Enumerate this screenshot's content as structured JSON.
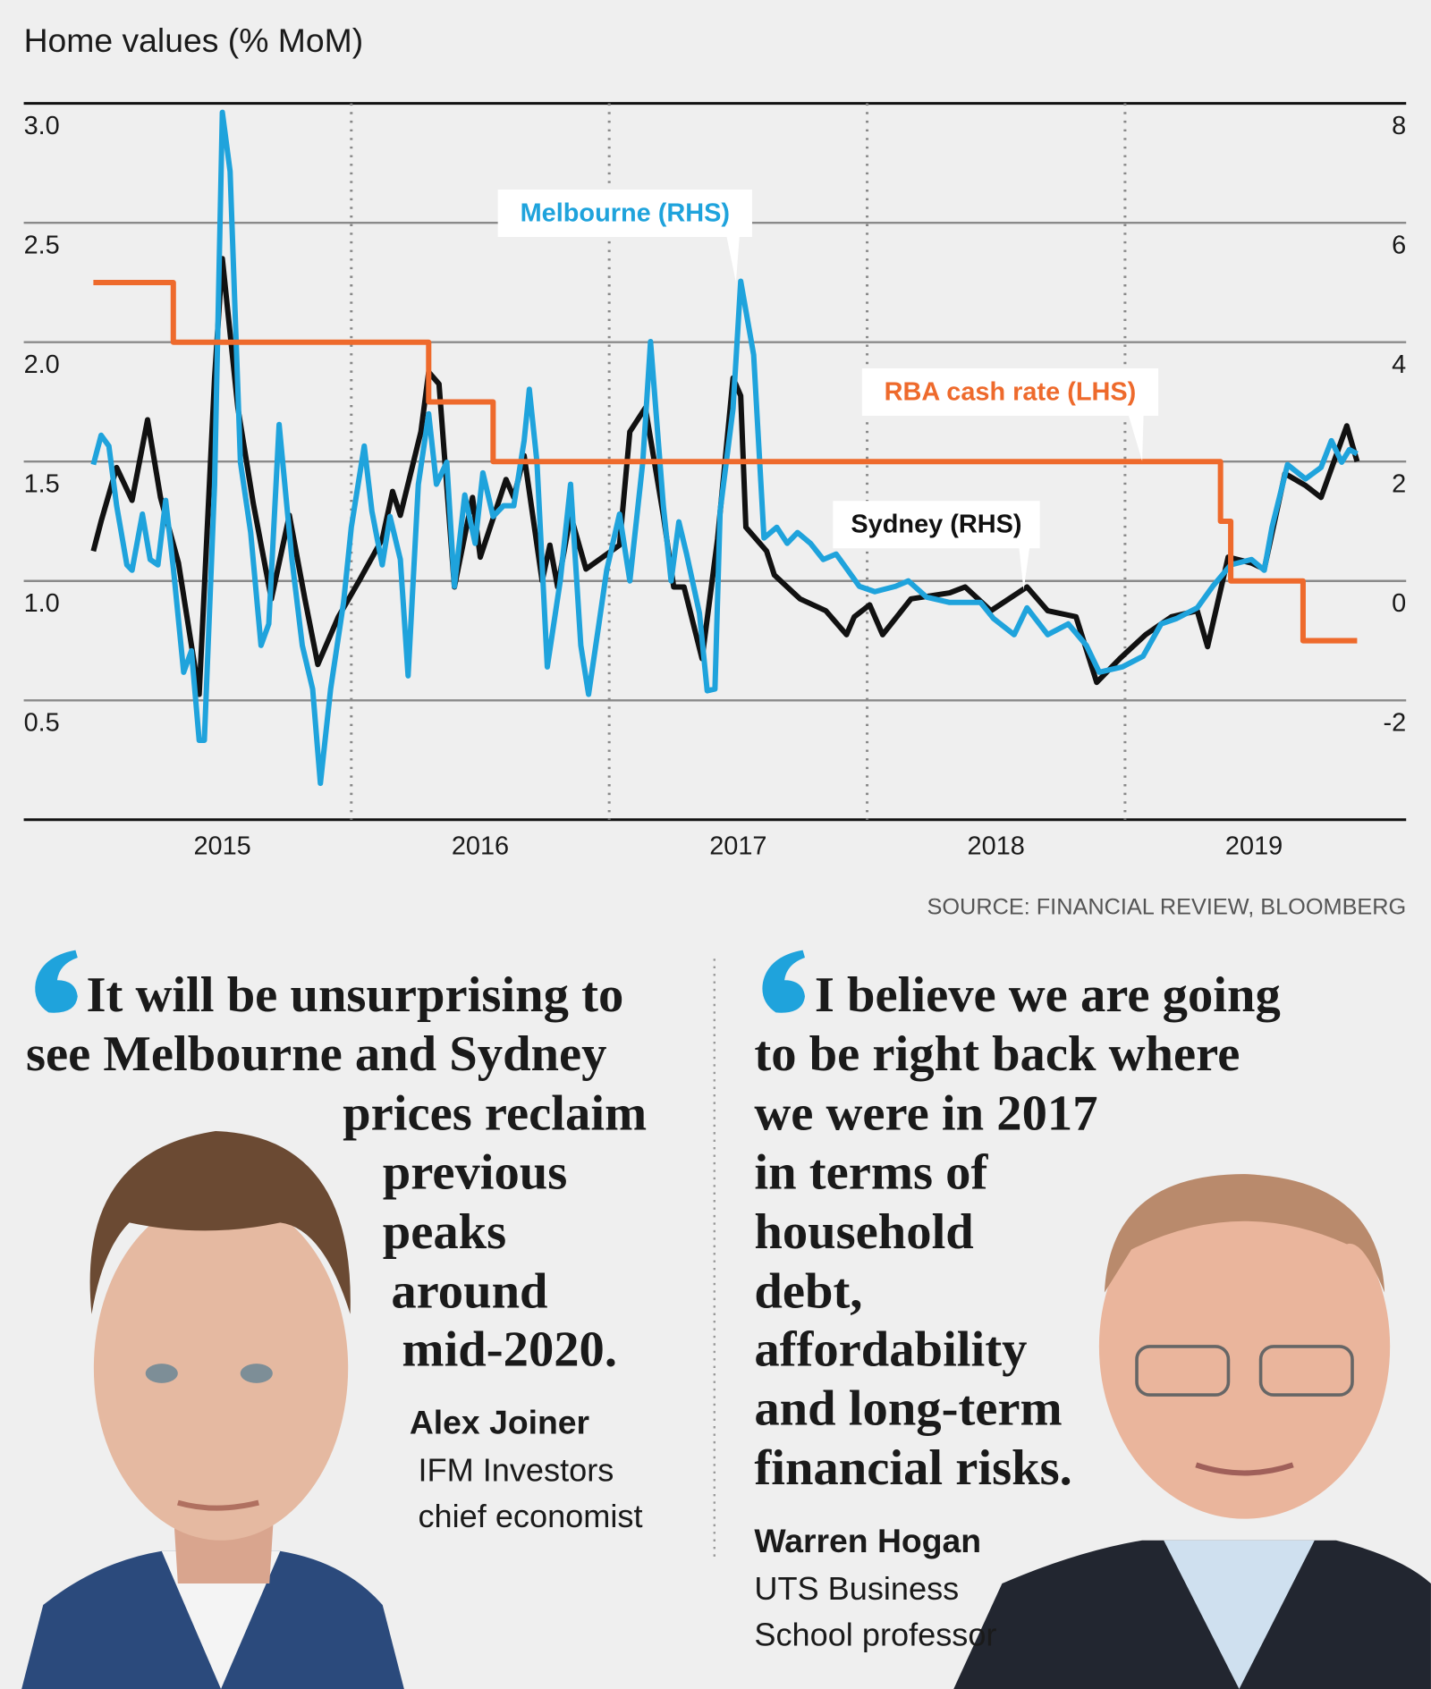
{
  "chart_data": {
    "type": "line",
    "title": "Home values (% MoM)",
    "source": "SOURCE: FINANCIAL REVIEW, BLOOMBERG",
    "xlim": [
      2014.23,
      2019.59
    ],
    "xticks": [
      2015,
      2016,
      2017,
      2018,
      2019
    ],
    "ylim": [
      0,
      3.0
    ],
    "yticks": [
      0.5,
      {
        "value": 1,
        "label": "1.0"
      },
      1.5,
      {
        "value": 2,
        "label": "2.0"
      },
      2.5,
      {
        "value": 3,
        "label": "3.0"
      }
    ],
    "y2lim": [
      -4,
      8
    ],
    "y2ticks": [
      -2,
      0,
      2,
      4,
      6,
      8
    ],
    "grid": true,
    "series": [
      {
        "name": "Sydney (RHS)",
        "color": "#111111",
        "axis": "y2",
        "x": [
          2014.5,
          2014.53,
          2014.59,
          2014.65,
          2014.71,
          2014.76,
          2014.83,
          2014.91,
          2014.97,
          2015.0,
          2015.06,
          2015.12,
          2015.19,
          2015.26,
          2015.32,
          2015.37,
          2015.45,
          2015.53,
          2015.62,
          2015.66,
          2015.69,
          2015.77,
          2015.8,
          2015.84,
          2015.9,
          2015.97,
          2016.0,
          2016.1,
          2016.13,
          2016.17,
          2016.24,
          2016.27,
          2016.3,
          2016.35,
          2016.41,
          2016.54,
          2016.58,
          2016.64,
          2016.71,
          2016.75,
          2016.79,
          2016.86,
          2016.92,
          2016.98,
          2017.01,
          2017.03,
          2017.11,
          2017.14,
          2017.24,
          2017.34,
          2017.42,
          2017.45,
          2017.51,
          2017.56,
          2017.67,
          2017.82,
          2017.88,
          2017.98,
          2018.12,
          2018.2,
          2018.31,
          2018.39,
          2018.48,
          2018.58,
          2018.68,
          2018.78,
          2018.82,
          2018.9,
          2018.99,
          2019.04,
          2019.12,
          2019.2,
          2019.26,
          2019.36,
          2019.4
        ],
        "values": [
          0.5,
          1.0,
          1.9,
          1.35,
          2.7,
          1.4,
          0.3,
          -1.9,
          3.4,
          5.4,
          2.9,
          1.3,
          -0.3,
          1.1,
          -0.3,
          -1.4,
          -0.6,
          0,
          0.7,
          1.5,
          1.1,
          2.5,
          3.5,
          3.3,
          -0.1,
          1.4,
          0.4,
          1.7,
          1.4,
          2.1,
          0,
          0.6,
          -0.1,
          1.1,
          0.2,
          0.6,
          2.5,
          2.9,
          1.1,
          -0.1,
          -0.1,
          -1.3,
          0.7,
          3.4,
          3.1,
          0.9,
          0.5,
          0.1,
          -0.3,
          -0.5,
          -0.9,
          -0.6,
          -0.4,
          -0.9,
          -0.3,
          -0.2,
          -0.1,
          -0.5,
          -0.1,
          -0.5,
          -0.6,
          -1.7,
          -1.3,
          -0.9,
          -0.6,
          -0.5,
          -1.1,
          0.4,
          0.3,
          0.2,
          1.8,
          1.6,
          1.4,
          2.6,
          2.0
        ]
      },
      {
        "name": "Melbourne (RHS)",
        "color": "#1fa3dc",
        "axis": "y2",
        "x": [
          2014.5,
          2014.53,
          2014.56,
          2014.59,
          2014.63,
          2014.65,
          2014.69,
          2014.72,
          2014.75,
          2014.78,
          2014.81,
          2014.85,
          2014.88,
          2014.91,
          2014.93,
          2014.97,
          2015.0,
          2015.03,
          2015.07,
          2015.11,
          2015.15,
          2015.18,
          2015.22,
          2015.27,
          2015.31,
          2015.35,
          2015.38,
          2015.42,
          2015.47,
          2015.5,
          2015.55,
          2015.58,
          2015.62,
          2015.65,
          2015.69,
          2015.72,
          2015.76,
          2015.8,
          2015.83,
          2015.87,
          2015.9,
          2015.94,
          2015.98,
          2016.01,
          2016.05,
          2016.09,
          2016.13,
          2016.17,
          2016.19,
          2016.22,
          2016.26,
          2016.31,
          2016.35,
          2016.39,
          2016.42,
          2016.46,
          2016.49,
          2016.54,
          2016.58,
          2016.63,
          2016.66,
          2016.71,
          2016.74,
          2016.77,
          2016.8,
          2016.85,
          2016.88,
          2016.91,
          2016.93,
          2016.98,
          2017.01,
          2017.06,
          2017.1,
          2017.15,
          2017.19,
          2017.23,
          2017.28,
          2017.33,
          2017.38,
          2017.41,
          2017.47,
          2017.53,
          2017.61,
          2017.66,
          2017.73,
          2017.82,
          2017.94,
          2017.99,
          2018.07,
          2018.12,
          2018.2,
          2018.28,
          2018.35,
          2018.4,
          2018.49,
          2018.57,
          2018.64,
          2018.7,
          2018.78,
          2018.84,
          2018.91,
          2018.99,
          2019.04,
          2019.07,
          2019.13,
          2019.2,
          2019.26,
          2019.3,
          2019.34,
          2019.37,
          2019.4
        ],
        "values": [
          1.95,
          2.44,
          2.26,
          1.26,
          0.27,
          0.18,
          1.12,
          0.36,
          0.27,
          1.35,
          0.22,
          -1.53,
          -1.17,
          -2.67,
          -2.67,
          1.62,
          7.85,
          6.86,
          1.99,
          0.81,
          -1.08,
          -0.72,
          2.62,
          0.36,
          -1.08,
          -1.81,
          -3.39,
          -1.81,
          -0.36,
          0.9,
          2.26,
          1.17,
          0.27,
          1.08,
          0.36,
          -1.59,
          1.62,
          2.8,
          1.62,
          1.99,
          -0.09,
          1.44,
          0.63,
          1.81,
          1.08,
          1.26,
          1.26,
          2.35,
          3.21,
          1.99,
          -1.44,
          0,
          1.62,
          -1.08,
          -1.9,
          -0.72,
          0.18,
          1.12,
          0,
          1.99,
          4.01,
          1.26,
          0,
          0.99,
          0.45,
          -0.54,
          -1.84,
          -1.81,
          1.17,
          2.89,
          5.02,
          3.79,
          0.72,
          0.9,
          0.63,
          0.81,
          0.63,
          0.36,
          0.45,
          0.27,
          -0.09,
          -0.18,
          -0.09,
          0,
          -0.27,
          -0.36,
          -0.36,
          -0.63,
          -0.9,
          -0.45,
          -0.9,
          -0.72,
          -1.08,
          -1.53,
          -1.44,
          -1.26,
          -0.72,
          -0.63,
          -0.45,
          -0.09,
          0.27,
          0.36,
          0.18,
          0.9,
          1.95,
          1.71,
          1.9,
          2.35,
          1.99,
          2.2,
          2.13
        ]
      },
      {
        "name": "RBA cash rate (LHS)",
        "color": "#ee6a2c",
        "axis": "y",
        "x": [
          2014.5,
          2014.81,
          2014.81,
          2015.8,
          2015.8,
          2016.05,
          2016.05,
          2018.87,
          2018.87,
          2018.91,
          2018.91,
          2019.19,
          2019.19,
          2019.4
        ],
        "values": [
          2.25,
          2.25,
          2,
          2,
          1.75,
          1.75,
          1.5,
          1.5,
          1.25,
          1.25,
          1,
          1,
          0.75,
          0.75
        ]
      }
    ]
  },
  "quotes": [
    {
      "lines": [
        "It will be unsurprising to",
        "see Melbourne and Sydney",
        "prices reclaim",
        "previous",
        "peaks",
        "around",
        "mid-2020."
      ],
      "name": "Alex Joiner",
      "role": [
        "IFM Investors",
        "chief economist"
      ]
    },
    {
      "lines": [
        "I believe we are going",
        "to be right back where",
        "we were in 2017",
        "in terms of",
        "household",
        "debt,",
        "affordability",
        "and long-term",
        "financial risks."
      ],
      "name": "Warren Hogan",
      "role": [
        "UTS Business",
        "School professor"
      ]
    }
  ]
}
